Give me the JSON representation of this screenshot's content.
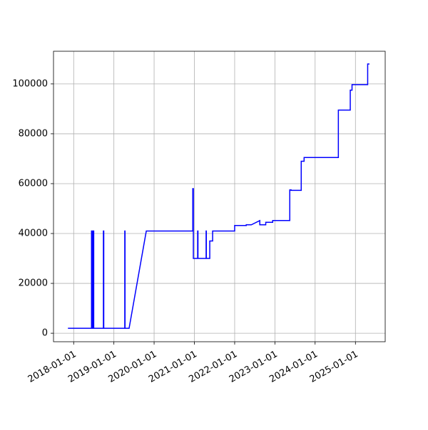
{
  "chart_data": {
    "type": "line",
    "grid": true,
    "xlim": [
      "2017-07-02",
      "2025-09-28"
    ],
    "ylim": [
      -3400,
      113100
    ],
    "xticks": [
      "2018-01-01",
      "2019-01-01",
      "2020-01-01",
      "2021-01-01",
      "2022-01-01",
      "2023-01-01",
      "2024-01-01",
      "2025-01-01"
    ],
    "yticks": [
      0,
      20000,
      40000,
      60000,
      80000,
      100000
    ],
    "x": [
      "2017-11-10",
      "2018-06-12",
      "2018-06-12",
      "2018-06-14",
      "2018-06-14",
      "2018-06-20",
      "2018-06-20",
      "2018-06-24",
      "2018-06-24",
      "2018-06-28",
      "2018-06-28",
      "2018-07-02",
      "2018-07-02",
      "2018-09-28",
      "2018-09-28",
      "2018-10-01",
      "2018-10-01",
      "2019-04-10",
      "2019-04-10",
      "2019-04-12",
      "2019-04-12",
      "2019-05-19",
      "2019-10-22",
      "2020-12-17",
      "2020-12-17",
      "2020-12-22",
      "2020-12-22",
      "2021-01-30",
      "2021-01-30",
      "2021-02-02",
      "2021-02-02",
      "2021-04-17",
      "2021-04-17",
      "2021-04-19",
      "2021-04-19",
      "2021-05-20",
      "2021-05-20",
      "2021-06-15",
      "2021-06-15",
      "2022-01-01",
      "2022-01-01",
      "2022-04-16",
      "2022-04-16",
      "2022-06-01",
      "2022-08-17",
      "2022-08-17",
      "2022-10-10",
      "2022-10-10",
      "2022-12-12",
      "2022-12-12",
      "2023-05-16",
      "2023-05-16",
      "2023-05-28",
      "2023-05-28",
      "2023-08-28",
      "2023-08-28",
      "2023-09-23",
      "2023-09-23",
      "2024-07-30",
      "2024-07-30",
      "2024-11-15",
      "2024-11-15",
      "2024-12-01",
      "2024-12-01",
      "2025-04-22",
      "2025-04-22",
      "2025-05-08"
    ],
    "series": [
      {
        "color": "#0000ff",
        "values": [
          2000,
          2000,
          41000,
          41000,
          2000,
          2000,
          41000,
          41000,
          2000,
          2000,
          41000,
          41000,
          2000,
          2000,
          41000,
          41000,
          2000,
          2000,
          41000,
          41000,
          2000,
          2000,
          41000,
          41000,
          58000,
          58000,
          30000,
          30000,
          41000,
          41000,
          30000,
          30000,
          41000,
          41000,
          30000,
          30000,
          37000,
          37000,
          41000,
          41000,
          43200,
          43200,
          43500,
          43500,
          45200,
          43500,
          43500,
          44500,
          44500,
          45200,
          45200,
          57500,
          57500,
          57300,
          57300,
          69000,
          69000,
          70500,
          70500,
          89500,
          89500,
          97500,
          97500,
          99700,
          99700,
          108000,
          108000
        ]
      }
    ]
  }
}
